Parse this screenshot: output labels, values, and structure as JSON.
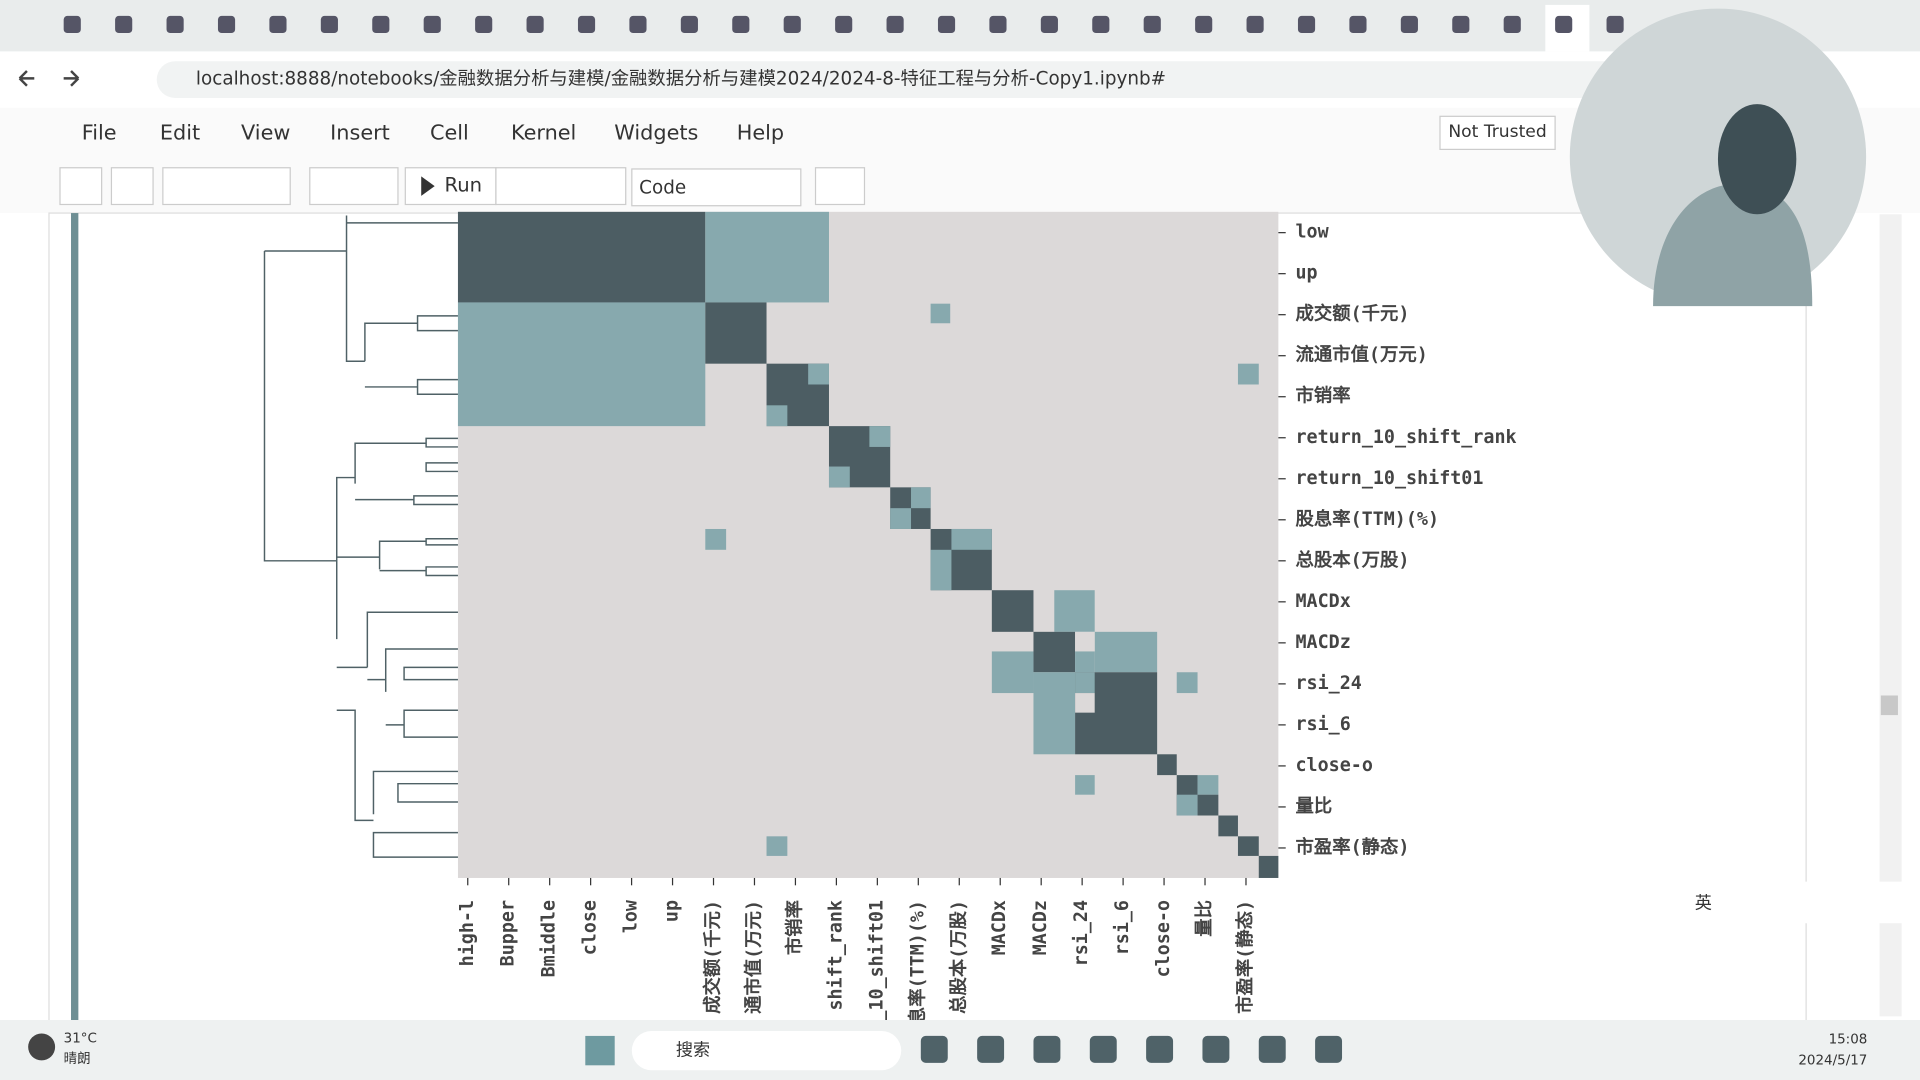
{
  "browser": {
    "url": "localhost:8888/notebooks/金融数据分析与建模/金融数据分析与建模2024/2024-8-特征工程与分析-Copy1.ipynb#"
  },
  "notebook": {
    "menu": [
      "File",
      "Edit",
      "View",
      "Insert",
      "Cell",
      "Kernel",
      "Widgets",
      "Help"
    ],
    "trust": "Not Trusted",
    "run": "Run",
    "cell_type": "Code"
  },
  "heatmap": {
    "row_labels": [
      "low",
      "up",
      "成交额(千元)",
      "流通市值(万元)",
      "市销率",
      "return_10_shift_rank",
      "return_10_shift01",
      "股息率(TTM)(%)",
      "总股本(万股)",
      "MACDx",
      "MACDz",
      "rsi_24",
      "rsi_6",
      "close-o",
      "量比",
      "市盈率(静态)"
    ],
    "col_labels": [
      "high-l",
      "Bupper",
      "Bmiddle",
      "close",
      "low",
      "up",
      "成交额(千元)",
      "通市值(万元)",
      "市销率",
      "shift_rank",
      "_10_shift01",
      "息率(TTM)(%)",
      "总股本(万股)",
      "MACDx",
      "MACDz",
      "rsi_24",
      "rsi_6",
      "close-o",
      "量比",
      "市盈率(静态)"
    ]
  },
  "taskbar": {
    "temperature": "31°C",
    "weather": "晴朗",
    "search": "搜索",
    "ime": "英",
    "time": "15:08",
    "date": "2024/5/17"
  }
}
